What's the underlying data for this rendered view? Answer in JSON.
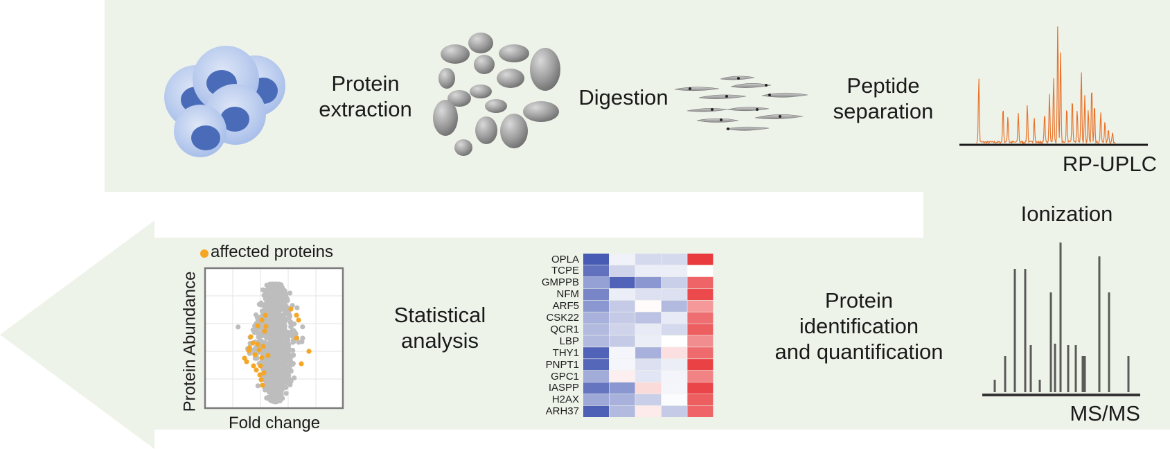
{
  "colors": {
    "panel_bg": "#eef3ea",
    "cell_fill": "#b7c9ec",
    "cell_nucleus": "#4a6cb8",
    "blob": "#9e9e9e",
    "chromatogram": "#e8742c",
    "spectrum": "#5a5a58",
    "affected": "#f5a623",
    "unaffected": "#bdbdbd"
  },
  "steps": {
    "protein_extraction": [
      "Protein",
      "extraction"
    ],
    "digestion": "Digestion",
    "peptide_separation": [
      "Peptide",
      "separation"
    ],
    "rp_uplc": "RP-UPLC",
    "ionization": "Ionization",
    "ms_ms": "MS/MS",
    "protein_id": [
      "Protein",
      "identification",
      "and quantification"
    ],
    "statistical_analysis": [
      "Statistical",
      "analysis"
    ]
  },
  "volcano": {
    "legend": "affected proteins",
    "xlabel": "Fold change",
    "ylabel": "Protein Abundance"
  },
  "heatmap": {
    "rows": [
      "OPLA",
      "TCPE",
      "GMPPB",
      "NFM",
      "ARF5",
      "CSK22",
      "QCR1",
      "LBP",
      "THY1",
      "PNPT1",
      "GPC1",
      "IASPP",
      "H2AX",
      "ARH37"
    ],
    "values": [
      [
        -0.95,
        -0.08,
        -0.22,
        -0.22,
        0.95
      ],
      [
        -0.82,
        -0.25,
        -0.1,
        -0.1,
        0.0
      ],
      [
        -0.55,
        -0.9,
        -0.6,
        -0.28,
        0.75
      ],
      [
        -0.7,
        -0.1,
        -0.18,
        -0.18,
        0.88
      ],
      [
        -0.6,
        -0.3,
        0.02,
        -0.4,
        0.5
      ],
      [
        -0.45,
        -0.3,
        -0.35,
        -0.12,
        0.7
      ],
      [
        -0.4,
        -0.25,
        -0.12,
        -0.22,
        0.78
      ],
      [
        -0.4,
        -0.3,
        -0.1,
        0.0,
        0.55
      ],
      [
        -0.9,
        -0.05,
        -0.45,
        0.15,
        0.72
      ],
      [
        -0.88,
        -0.05,
        -0.18,
        -0.1,
        0.92
      ],
      [
        -0.48,
        0.08,
        -0.15,
        -0.06,
        0.6
      ],
      [
        -0.8,
        -0.6,
        0.18,
        -0.05,
        0.9
      ],
      [
        -0.5,
        -0.45,
        -0.28,
        -0.02,
        0.78
      ],
      [
        -0.92,
        -0.4,
        0.1,
        -0.3,
        0.75
      ]
    ]
  }
}
